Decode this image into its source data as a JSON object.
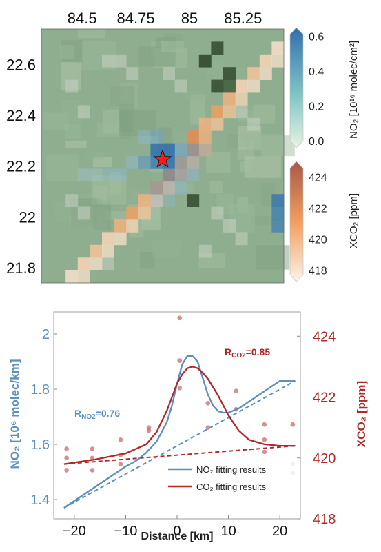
{
  "colors": {
    "no2": "#5b8fbf",
    "co2": "#b02a2a",
    "co2_point": "#c96b6b",
    "map_bg": "#8fae8f"
  },
  "map": {
    "lon_ticks": [
      "84.5",
      "84.75",
      "85",
      "85.25"
    ],
    "lat_ticks": [
      "22.6",
      "22.4",
      "22.2",
      "22",
      "21.8"
    ],
    "lon_range": [
      84.31,
      85.44
    ],
    "lat_range": [
      21.74,
      22.74
    ],
    "marker_icon": "star-icon",
    "colorbar_no2": {
      "label": "NO₂ [10¹⁶ molec/cm²]",
      "ticks": [
        "0.6",
        "0.4",
        "0.2",
        "0.0"
      ],
      "range": [
        0,
        0.65
      ],
      "colors": [
        "#e6f4e4",
        "#7fc3c6",
        "#2f6fad"
      ]
    },
    "colorbar_xco2": {
      "label": "XCO₂ [ppm]",
      "ticks": [
        "424",
        "422",
        "420",
        "418"
      ],
      "range": [
        417.7,
        425
      ],
      "colors": [
        "#fdf3ea",
        "#f29d5c",
        "#a9594a"
      ]
    }
  },
  "chart_data": {
    "type": "line",
    "xlabel": "Distance [km]",
    "ylabel_left": "NO₂ [10⁶ molec/km]",
    "ylabel_right": "XCO₂ [ppm]",
    "xlim": [
      -24,
      24
    ],
    "ylim_left": [
      1.33,
      2.08
    ],
    "ylim_right": [
      418,
      424.8
    ],
    "x_ticks": [
      "−20",
      "−10",
      "0",
      "10",
      "20"
    ],
    "y_left_ticks": [
      "2",
      "1.8",
      "1.6",
      "1.4"
    ],
    "y_right_ticks": [
      "424",
      "422",
      "420",
      "418"
    ],
    "annotations": {
      "r_no2": "0.76",
      "r_co2": "0.85"
    },
    "series": [
      {
        "name": "NO₂ fitting results",
        "axis": "left",
        "x": [
          -22,
          -18,
          -14,
          -10,
          -8,
          -6,
          -4,
          -2,
          -1,
          0,
          1,
          2,
          3,
          4,
          5,
          6,
          7,
          8,
          9,
          10,
          12,
          16,
          20,
          23
        ],
        "y": [
          1.37,
          1.42,
          1.47,
          1.52,
          1.54,
          1.57,
          1.61,
          1.68,
          1.74,
          1.82,
          1.89,
          1.92,
          1.92,
          1.9,
          1.84,
          1.78,
          1.74,
          1.72,
          1.715,
          1.715,
          1.73,
          1.78,
          1.83,
          1.83
        ]
      },
      {
        "name": "CO₂ fitting results",
        "axis": "right",
        "x": [
          -22,
          -16,
          -10,
          -6,
          -4,
          -2,
          0,
          1,
          2,
          3,
          4,
          5,
          6,
          8,
          10,
          12,
          14,
          17,
          20,
          23
        ],
        "y": [
          419.8,
          419.95,
          420.15,
          420.45,
          420.85,
          421.55,
          422.45,
          422.75,
          422.95,
          423.0,
          422.95,
          422.8,
          422.6,
          422.05,
          421.4,
          420.9,
          420.6,
          420.45,
          420.4,
          420.4
        ]
      }
    ],
    "background_no2": {
      "x": [
        -22,
        23
      ],
      "y": [
        1.37,
        1.83
      ]
    },
    "background_co2": {
      "x": [
        -22,
        23
      ],
      "y": [
        419.8,
        420.4
      ]
    },
    "co2_observations": {
      "x": [
        -21.5,
        -21.5,
        -21.5,
        -16.5,
        -16.5,
        -16.5,
        -11,
        -11,
        -11,
        -5.5,
        -5.5,
        0.5,
        0.5,
        0.5,
        6,
        6,
        11.5,
        11.5,
        17,
        17,
        17,
        22.5,
        22.5,
        22.5
      ],
      "y": [
        420.3,
        420.0,
        419.6,
        420.3,
        420.0,
        419.6,
        420.6,
        420.1,
        419.8,
        421.0,
        420.9,
        424.6,
        423.2,
        422.3,
        421.8,
        421.0,
        422.2,
        421.6,
        421.1,
        420.6,
        420.2,
        421.1,
        419.8,
        419.5
      ]
    }
  }
}
